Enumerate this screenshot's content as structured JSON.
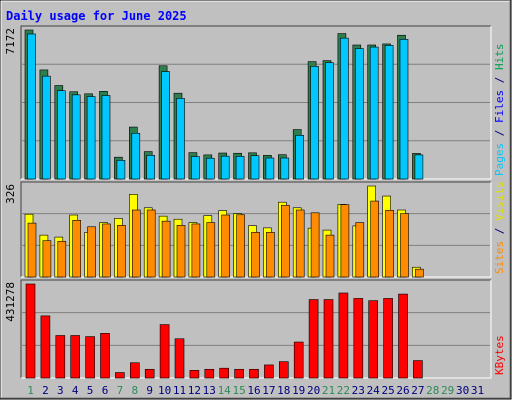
{
  "title": "Daily usage for June 2025",
  "colors": {
    "background": "#c0c0c0",
    "title": "#0000ff",
    "hits": "#00c8ff",
    "hits_shadow": "#2e7d4f",
    "files": "#0090ff",
    "files_shadow": "#3030c0",
    "visits": "#ffff00",
    "sites": "#ff8c00",
    "kbytes": "#ff0000",
    "weekend": "#2e8b57",
    "weekday": "#000080"
  },
  "chart_data": {
    "type": "bar",
    "x": [
      "1",
      "2",
      "3",
      "4",
      "5",
      "6",
      "7",
      "8",
      "9",
      "10",
      "11",
      "12",
      "13",
      "14",
      "15",
      "16",
      "17",
      "18",
      "19",
      "20",
      "21",
      "22",
      "23",
      "24",
      "25",
      "26",
      "27",
      "28",
      "29",
      "30",
      "31"
    ],
    "weekend_days": [
      "1",
      "7",
      "8",
      "14",
      "15",
      "21",
      "22",
      "28",
      "29"
    ],
    "panels": [
      {
        "name": "hits-files",
        "max_label": "7172",
        "ymax": 7172,
        "legend": [
          {
            "text": "Hits",
            "color": "#00a050"
          },
          {
            "text": " / ",
            "color": "#000080"
          },
          {
            "text": "Files",
            "color": "#0000ff"
          },
          {
            "text": " / ",
            "color": "#000080"
          },
          {
            "text": "Pages",
            "color": "#00c8ff"
          }
        ],
        "series": [
          {
            "name": "Hits",
            "values": [
              7172,
              5250,
              4500,
              4200,
              4100,
              4220,
              1050,
              2500,
              1320,
              5450,
              4130,
              1270,
              1160,
              1250,
              1240,
              1260,
              1140,
              1170,
              2380,
              5650,
              5700,
              7000,
              6450,
              6450,
              6500,
              6920,
              1230,
              0,
              0,
              0,
              0
            ]
          },
          {
            "name": "Files",
            "values": [
              6980,
              4950,
              4250,
              4050,
              3970,
              4020,
              900,
              2200,
              1140,
              5170,
              3880,
              1080,
              1000,
              1100,
              1090,
              1120,
              1010,
              1010,
              2100,
              5420,
              5600,
              6780,
              6280,
              6350,
              6430,
              6720,
              1160,
              0,
              0,
              0,
              0
            ]
          },
          {
            "name": "Pages",
            "values": [
              6980,
              4950,
              4250,
              4050,
              3970,
              4020,
              900,
              2200,
              1140,
              5170,
              3880,
              1080,
              1000,
              1100,
              1090,
              1120,
              1010,
              1010,
              2100,
              5420,
              5600,
              6780,
              6280,
              6350,
              6430,
              6720,
              1160,
              0,
              0,
              0,
              0
            ]
          }
        ]
      },
      {
        "name": "visits-sites",
        "max_label": "326",
        "ymax": 326,
        "legend": [
          {
            "text": "Visits",
            "color": "#e0e000"
          },
          {
            "text": " / ",
            "color": "#000080"
          },
          {
            "text": "Sites",
            "color": "#ff8c00"
          }
        ],
        "series": [
          {
            "name": "Visits",
            "values": [
              225,
              150,
              143,
              222,
              160,
              195,
              210,
              296,
              248,
              218,
              207,
              195,
              220,
              238,
              227,
              184,
              176,
              268,
              248,
              175,
              168,
              260,
              183,
              326,
              290,
              240,
              35,
              0,
              0,
              0,
              0
            ]
          },
          {
            "name": "Sites",
            "values": [
              193,
              130,
              128,
              203,
              180,
              190,
              185,
              240,
              240,
              200,
              185,
              190,
              195,
              222,
              223,
              160,
              160,
              257,
              240,
              230,
              150,
              259,
              195,
              272,
              239,
              227,
              28,
              0,
              0,
              0,
              0
            ]
          }
        ]
      },
      {
        "name": "kbytes",
        "max_label": "431278",
        "ymax": 431278,
        "legend": [
          {
            "text": "KBytes",
            "color": "#ff0000"
          }
        ],
        "series": [
          {
            "name": "KBytes",
            "values": [
              431278,
              285000,
              195000,
              195000,
              190000,
              205000,
              25000,
              70000,
              40000,
              245000,
              180000,
              35000,
              40000,
              45000,
              40000,
              40000,
              60000,
              75000,
              165000,
              360000,
              360000,
              390000,
              365000,
              355000,
              365000,
              385000,
              80000,
              0,
              0,
              0,
              0
            ]
          }
        ]
      }
    ]
  }
}
